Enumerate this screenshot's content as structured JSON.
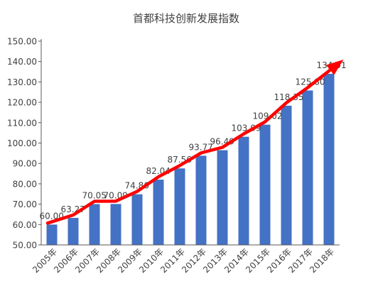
{
  "chart_data": {
    "type": "bar",
    "title": "首都科技创新发展指数",
    "categories": [
      "2005年",
      "2006年",
      "2007年",
      "2008年",
      "2009年",
      "2010年",
      "2011年",
      "2012年",
      "2013年",
      "2014年",
      "2015年",
      "2016年",
      "2017年",
      "2018年"
    ],
    "values": [
      60.0,
      63.27,
      70.05,
      70.09,
      74.86,
      82.04,
      87.56,
      93.77,
      96.49,
      103.09,
      109.02,
      118.35,
      125.8,
      134.01
    ],
    "value_labels": [
      "60.00",
      "63.27",
      "70.05",
      "70.09",
      "74.86",
      "82.04",
      "87.56",
      "93.77",
      "96.49",
      "103.09",
      "109.02",
      "118.35",
      "125.80",
      "134.01"
    ],
    "ylim": [
      50,
      150
    ],
    "yticks": [
      "50.00",
      "60.00",
      "70.00",
      "80.00",
      "90.00",
      "100.00",
      "110.00",
      "120.00",
      "130.00",
      "140.00",
      "150.00"
    ],
    "grid": false,
    "legend": "none",
    "trend_arrow": true,
    "colors": {
      "bar": "#4472C4",
      "trend": "#FF0000",
      "axis": "#595959",
      "text": "#404040"
    }
  }
}
